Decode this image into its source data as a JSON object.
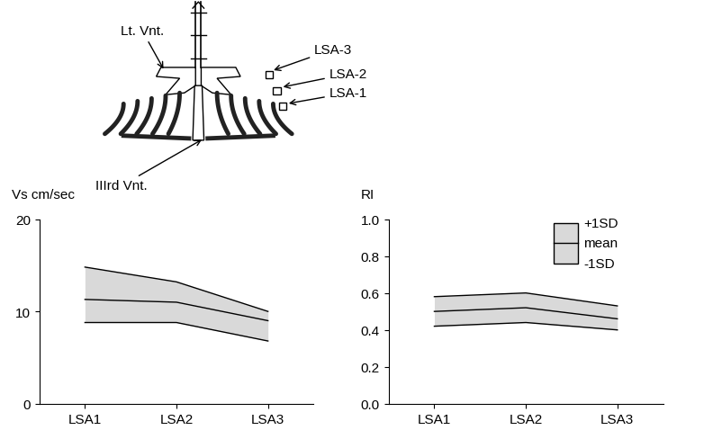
{
  "diagram": {
    "labels": [
      "Lt. Vnt.",
      "LSA-3",
      "LSA-2",
      "LSA-1",
      "IIIrd Vnt."
    ]
  },
  "chart_data": [
    {
      "type": "band",
      "y_label": "Vs cm/sec",
      "categories": [
        "LSA1",
        "LSA2",
        "LSA3"
      ],
      "color": "#d9d9d9",
      "series": [
        {
          "color": "#000000",
          "values": [
            14.8,
            13.2,
            10.0
          ]
        },
        {
          "color": "#000000",
          "values": [
            11.3,
            11.0,
            9.0
          ]
        },
        {
          "color": "#000000",
          "values": [
            8.8,
            8.8,
            6.8
          ]
        }
      ],
      "ylim": [
        0,
        20
      ],
      "yticks": [
        0,
        10,
        20
      ]
    },
    {
      "type": "band",
      "y_label": "RI",
      "categories": [
        "LSA1",
        "LSA2",
        "LSA3"
      ],
      "color": "#d9d9d9",
      "legend": "upper right",
      "series": [
        {
          "name": "+1SD",
          "color": "#000000",
          "values": [
            0.58,
            0.6,
            0.53
          ]
        },
        {
          "name": "mean",
          "color": "#000000",
          "values": [
            0.5,
            0.52,
            0.46
          ]
        },
        {
          "name": "-1SD",
          "color": "#000000",
          "values": [
            0.42,
            0.44,
            0.4
          ]
        }
      ],
      "ylim": [
        0,
        1.0
      ],
      "yticks": [
        {
          "value": 0,
          "label": "0.0"
        },
        0.2,
        0.4,
        0.6,
        0.8,
        {
          "value": 1,
          "label": "1.0"
        }
      ]
    }
  ]
}
